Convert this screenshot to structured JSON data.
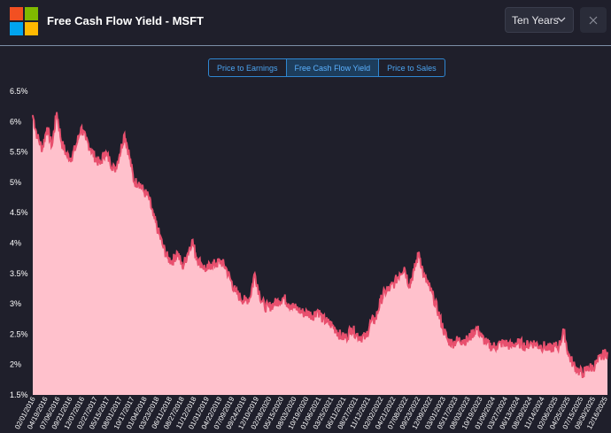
{
  "header": {
    "title": "Free Cash Flow Yield - MSFT",
    "logo_colors": [
      "#f25022",
      "#7fba00",
      "#00a4ef",
      "#ffb900"
    ],
    "range_select": {
      "value": "Ten Years",
      "icon": "chevron-down-icon"
    },
    "close_icon": "close-icon"
  },
  "tabs": [
    {
      "label": "Price to Earnings",
      "active": false
    },
    {
      "label": "Free Cash Flow Yield",
      "active": true
    },
    {
      "label": "Price to Sales",
      "active": false
    }
  ],
  "chart_data": {
    "type": "area",
    "title": "",
    "xlabel": "",
    "ylabel": "",
    "ylim": [
      1.5,
      6.5
    ],
    "y_ticks": [
      "1.5%",
      "2%",
      "2.5%",
      "3%",
      "3.5%",
      "4%",
      "4.5%",
      "5%",
      "5.5%",
      "6%",
      "6.5%"
    ],
    "grid": false,
    "fill_color": "#ffc1cc",
    "line_color": "#e8506e",
    "x_tick_labels": [
      "02/01/2016",
      "04/19/2016",
      "07/06/2016",
      "09/21/2016",
      "12/07/2016",
      "02/27/2017",
      "05/15/2017",
      "08/01/2017",
      "10/17/2017",
      "01/04/2018",
      "03/23/2018",
      "06/11/2018",
      "08/27/2018",
      "11/12/2018",
      "01/31/2019",
      "04/22/2019",
      "07/09/2019",
      "09/24/2019",
      "12/10/2019",
      "02/28/2020",
      "05/15/2020",
      "08/03/2020",
      "10/19/2020",
      "01/06/2021",
      "03/25/2021",
      "06/11/2021",
      "08/27/2021",
      "11/12/2021",
      "02/02/2022",
      "04/21/2022",
      "07/08/2022",
      "09/23/2022",
      "12/09/2022",
      "03/01/2023",
      "05/17/2023",
      "08/03/2023",
      "10/19/2023",
      "01/09/2024",
      "03/27/2024",
      "06/13/2024",
      "08/29/2024",
      "11/14/2024",
      "02/06/2025",
      "04/25/2025",
      "07/15/2025",
      "09/30/2025",
      "12/16/2025"
    ],
    "series": [
      {
        "x": [
          "2016-02-01",
          "2016-03-01",
          "2016-04-01",
          "2016-05-01",
          "2016-06-01",
          "2016-07-01",
          "2016-08-01",
          "2016-09-01",
          "2016-10-01",
          "2016-11-01",
          "2016-12-01",
          "2017-01-01",
          "2017-02-01",
          "2017-03-01",
          "2017-04-01",
          "2017-05-01",
          "2017-06-01",
          "2017-07-01",
          "2017-08-01",
          "2017-09-01",
          "2017-10-01",
          "2017-11-01",
          "2017-12-01",
          "2018-01-01",
          "2018-02-01",
          "2018-03-01",
          "2018-04-01",
          "2018-05-01",
          "2018-06-01",
          "2018-07-01",
          "2018-08-01",
          "2018-09-01",
          "2018-10-01",
          "2018-11-01",
          "2018-12-01",
          "2019-01-01",
          "2019-02-01",
          "2019-03-01",
          "2019-04-01",
          "2019-05-01",
          "2019-06-01",
          "2019-07-01",
          "2019-08-01",
          "2019-09-01",
          "2019-10-01",
          "2019-11-01",
          "2019-12-01",
          "2020-01-01",
          "2020-02-01",
          "2020-03-01",
          "2020-04-01",
          "2020-05-01",
          "2020-06-01",
          "2020-07-01",
          "2020-08-01",
          "2020-09-01",
          "2020-10-01",
          "2020-11-01",
          "2020-12-01",
          "2021-01-01",
          "2021-02-01",
          "2021-03-01",
          "2021-04-01",
          "2021-05-01",
          "2021-06-01",
          "2021-07-01",
          "2021-08-01",
          "2021-09-01",
          "2021-10-01",
          "2021-11-01",
          "2021-12-01",
          "2022-01-01",
          "2022-02-01",
          "2022-03-01",
          "2022-04-01",
          "2022-05-01",
          "2022-06-01",
          "2022-07-01",
          "2022-08-01",
          "2022-09-01",
          "2022-10-01",
          "2022-11-01",
          "2022-12-01",
          "2023-01-01",
          "2023-02-01",
          "2023-03-01",
          "2023-04-01",
          "2023-05-01",
          "2023-06-01",
          "2023-07-01",
          "2023-08-01",
          "2023-09-01",
          "2023-10-01",
          "2023-11-01",
          "2023-12-01",
          "2024-01-01",
          "2024-02-01",
          "2024-03-01",
          "2024-04-01",
          "2024-05-01",
          "2024-06-01",
          "2024-07-01",
          "2024-08-01",
          "2024-09-01",
          "2024-10-01",
          "2024-11-01",
          "2024-12-01",
          "2025-01-01",
          "2025-02-01",
          "2025-03-01",
          "2025-04-01",
          "2025-05-01",
          "2025-06-01",
          "2025-07-01",
          "2025-08-01",
          "2025-09-01",
          "2025-10-01",
          "2025-11-01",
          "2025-12-01",
          "2026-01-01"
        ],
        "values": [
          6.1,
          5.75,
          5.55,
          5.9,
          5.6,
          6.15,
          5.65,
          5.45,
          5.4,
          5.6,
          5.9,
          5.7,
          5.55,
          5.4,
          5.3,
          5.5,
          5.35,
          5.2,
          5.45,
          5.8,
          5.45,
          5.0,
          5.0,
          4.85,
          4.75,
          4.45,
          4.2,
          3.95,
          3.75,
          3.7,
          3.85,
          3.6,
          3.8,
          4.05,
          3.75,
          3.65,
          3.55,
          3.65,
          3.65,
          3.7,
          3.6,
          3.4,
          3.2,
          3.1,
          3.05,
          3.1,
          3.5,
          3.15,
          2.95,
          2.95,
          3.0,
          3.05,
          3.1,
          3.0,
          2.95,
          2.9,
          2.85,
          2.85,
          2.8,
          2.9,
          2.75,
          2.7,
          2.65,
          2.55,
          2.45,
          2.45,
          2.6,
          2.5,
          2.45,
          2.45,
          2.7,
          2.75,
          3.05,
          3.2,
          3.25,
          3.35,
          3.5,
          3.6,
          3.3,
          3.55,
          3.85,
          3.45,
          3.3,
          3.1,
          2.85,
          2.6,
          2.4,
          2.35,
          2.4,
          2.4,
          2.4,
          2.5,
          2.6,
          2.45,
          2.35,
          2.3,
          2.3,
          2.35,
          2.35,
          2.3,
          2.35,
          2.35,
          2.3,
          2.35,
          2.35,
          2.3,
          2.3,
          2.25,
          2.3,
          2.3,
          2.55,
          2.15,
          2.0,
          1.9,
          1.85,
          1.95,
          1.95,
          2.05,
          2.15,
          2.2
        ]
      }
    ]
  }
}
